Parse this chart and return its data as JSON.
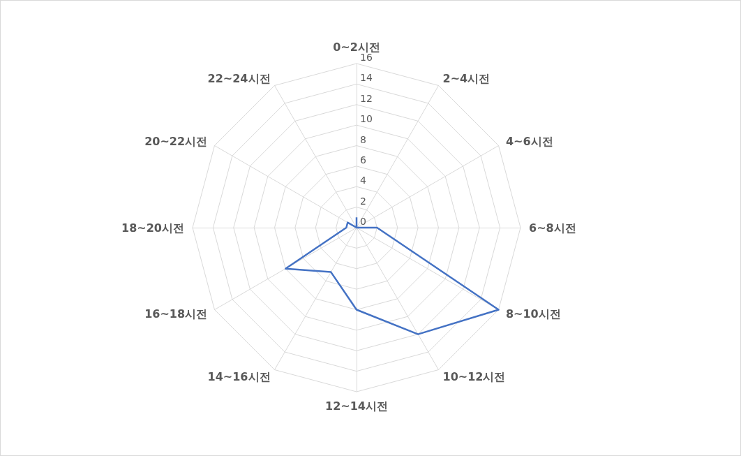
{
  "chart_data": {
    "type": "radar",
    "categories": [
      "0~2시전",
      "2~4시전",
      "4~6시전",
      "6~8시전",
      "8~10시전",
      "10~12시전",
      "12~14시전",
      "14~16시전",
      "16~18시전",
      "18~20시전",
      "20~22시전",
      "22~24시전"
    ],
    "series": [
      {
        "color": "#4472c4",
        "values": [
          1,
          0,
          0,
          2,
          16,
          12,
          8,
          5,
          8,
          1,
          1,
          0
        ]
      }
    ],
    "ylim": [
      0,
      16
    ],
    "yticks": [
      0,
      2,
      4,
      6,
      8,
      10,
      12,
      14,
      16
    ],
    "grid": true,
    "legend": false,
    "marker": "none",
    "line_style": "solid"
  }
}
